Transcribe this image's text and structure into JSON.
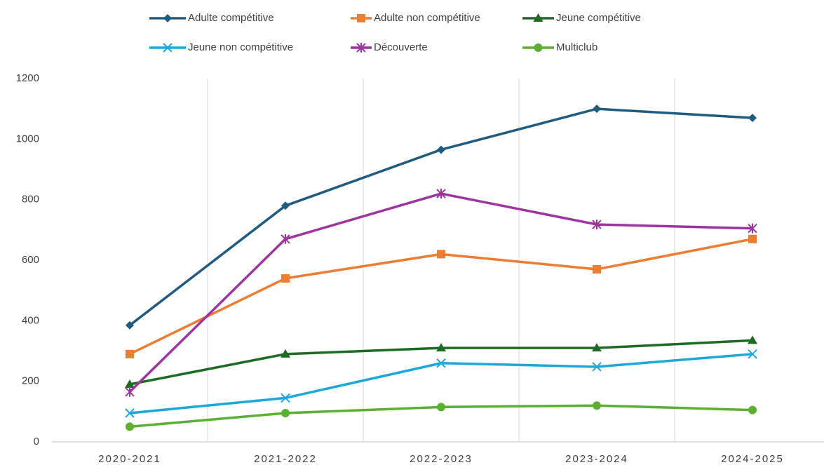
{
  "chart_data": {
    "type": "line",
    "categories": [
      "2020-2021",
      "2021-2022",
      "2022-2023",
      "2023-2024",
      "2024-2025"
    ],
    "series": [
      {
        "name": "Adulte compétitive",
        "color": "#1f5c80",
        "marker": "diamond",
        "values": [
          385,
          780,
          965,
          1100,
          1070
        ]
      },
      {
        "name": "Adulte non compétitive",
        "color": "#ed7d31",
        "marker": "square",
        "values": [
          290,
          540,
          620,
          570,
          670
        ]
      },
      {
        "name": "Jeune compétitive",
        "color": "#1e6b23",
        "marker": "triangle",
        "values": [
          190,
          290,
          310,
          310,
          335
        ]
      },
      {
        "name": "Jeune non compétitive",
        "color": "#1ea7db",
        "marker": "x",
        "values": [
          95,
          145,
          260,
          248,
          290
        ]
      },
      {
        "name": "Découverte",
        "color": "#9e34a0",
        "marker": "star",
        "values": [
          165,
          670,
          820,
          718,
          705
        ]
      },
      {
        "name": "Multiclub",
        "color": "#5bb030",
        "marker": "circle",
        "values": [
          50,
          95,
          115,
          120,
          105
        ]
      }
    ],
    "ylim": [
      0,
      1200
    ],
    "yticks": [
      0,
      200,
      400,
      600,
      800,
      1000,
      1200
    ],
    "legend": "top"
  }
}
